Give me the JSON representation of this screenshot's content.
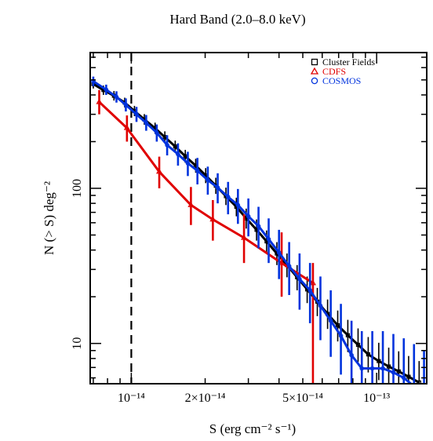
{
  "chart_data": {
    "type": "line",
    "title": "Hard Band (2.0–8.0 keV)",
    "xlabel": "S (erg cm⁻² s⁻¹)",
    "ylabel": "N (> S) deg⁻²",
    "x_scale": "log",
    "y_scale": "log",
    "xlim": [
      6.8e-15,
      1.6e-13
    ],
    "ylim": [
      5.5,
      750
    ],
    "x_ticks": [
      {
        "value": 1e-14,
        "label": "10⁻¹⁴"
      },
      {
        "value": 2e-14,
        "label": "2×10⁻¹⁴"
      },
      {
        "value": 5e-14,
        "label": "5×10⁻¹⁴"
      },
      {
        "value": 1e-13,
        "label": "10⁻¹³"
      }
    ],
    "y_ticks": [
      {
        "value": 10,
        "label": "10"
      },
      {
        "value": 100,
        "label": "100"
      }
    ],
    "vline": {
      "x": 1e-14,
      "style": "dashed"
    },
    "legend_position": "top-right",
    "series": [
      {
        "name": "Cluster Fields",
        "marker": "square",
        "color": "#000000",
        "points": [
          {
            "x": 7e-15,
            "y": 470,
            "lo": 440,
            "hi": 505
          },
          {
            "x": 7.7e-15,
            "y": 430,
            "lo": 400,
            "hi": 460
          },
          {
            "x": 8.5e-15,
            "y": 395,
            "lo": 368,
            "hi": 424
          },
          {
            "x": 9.4e-15,
            "y": 357,
            "lo": 332,
            "hi": 384
          },
          {
            "x": 1.03e-14,
            "y": 315,
            "lo": 292,
            "hi": 340
          },
          {
            "x": 1.13e-14,
            "y": 278,
            "lo": 257,
            "hi": 301
          },
          {
            "x": 1.25e-14,
            "y": 244,
            "lo": 225,
            "hi": 265
          },
          {
            "x": 1.37e-14,
            "y": 214,
            "lo": 196,
            "hi": 233
          },
          {
            "x": 1.51e-14,
            "y": 186,
            "lo": 170,
            "hi": 203
          },
          {
            "x": 1.66e-14,
            "y": 161,
            "lo": 146,
            "hi": 177
          },
          {
            "x": 1.83e-14,
            "y": 140,
            "lo": 126,
            "hi": 155
          },
          {
            "x": 2.01e-14,
            "y": 121,
            "lo": 108,
            "hi": 135
          },
          {
            "x": 2.21e-14,
            "y": 104,
            "lo": 92,
            "hi": 117
          },
          {
            "x": 2.43e-14,
            "y": 89,
            "lo": 78,
            "hi": 101
          },
          {
            "x": 2.68e-14,
            "y": 76,
            "lo": 66,
            "hi": 87
          },
          {
            "x": 2.94e-14,
            "y": 64,
            "lo": 55,
            "hi": 74
          },
          {
            "x": 3.24e-14,
            "y": 54,
            "lo": 46,
            "hi": 63
          },
          {
            "x": 3.56e-14,
            "y": 45.5,
            "lo": 38.5,
            "hi": 53.5
          },
          {
            "x": 3.92e-14,
            "y": 38,
            "lo": 32,
            "hi": 45
          },
          {
            "x": 4.31e-14,
            "y": 32,
            "lo": 26.7,
            "hi": 38
          },
          {
            "x": 4.74e-14,
            "y": 26.7,
            "lo": 22,
            "hi": 32
          },
          {
            "x": 5.21e-14,
            "y": 22.3,
            "lo": 18.2,
            "hi": 27
          },
          {
            "x": 5.73e-14,
            "y": 18.6,
            "lo": 15,
            "hi": 22.8
          },
          {
            "x": 6.31e-14,
            "y": 15.5,
            "lo": 12.4,
            "hi": 19.2
          },
          {
            "x": 6.94e-14,
            "y": 13.1,
            "lo": 10.3,
            "hi": 16.3
          },
          {
            "x": 7.63e-14,
            "y": 11.3,
            "lo": 8.8,
            "hi": 14.2
          },
          {
            "x": 8.4e-14,
            "y": 9.8,
            "lo": 7.6,
            "hi": 12.5
          },
          {
            "x": 9.24e-14,
            "y": 8.5,
            "lo": 6.5,
            "hi": 11
          },
          {
            "x": 1.02e-13,
            "y": 7.7,
            "lo": 5.8,
            "hi": 10.1
          },
          {
            "x": 1.12e-13,
            "y": 7.1,
            "lo": 5.3,
            "hi": 9.4
          },
          {
            "x": 1.23e-13,
            "y": 6.6,
            "lo": 4.9,
            "hi": 8.9
          },
          {
            "x": 1.35e-13,
            "y": 6.1,
            "lo": 4.5,
            "hi": 8.3
          },
          {
            "x": 1.49e-13,
            "y": 5.6,
            "lo": 4.1,
            "hi": 7.7
          }
        ]
      },
      {
        "name": "CDFS",
        "marker": "triangle",
        "color": "#e00000",
        "points": [
          {
            "x": 7.4e-15,
            "y": 360,
            "lo": 300,
            "hi": 430
          },
          {
            "x": 9.6e-15,
            "y": 245,
            "lo": 200,
            "hi": 295
          },
          {
            "x": 1.3e-14,
            "y": 128,
            "lo": 100,
            "hi": 160
          },
          {
            "x": 1.75e-14,
            "y": 78,
            "lo": 58,
            "hi": 102
          },
          {
            "x": 2.15e-14,
            "y": 63,
            "lo": 46,
            "hi": 84
          },
          {
            "x": 2.88e-14,
            "y": 48,
            "lo": 33,
            "hi": 68
          },
          {
            "x": 4.1e-14,
            "y": 33,
            "lo": 20,
            "hi": 52
          },
          {
            "x": 5.5e-14,
            "y": 24.5,
            "lo": 4,
            "hi": 33
          }
        ]
      },
      {
        "name": "COSMOS",
        "marker": "circle",
        "color": "#0033dd",
        "points": [
          {
            "x": 7e-15,
            "y": 490,
            "lo": 455,
            "hi": 525
          },
          {
            "x": 7.9e-15,
            "y": 432,
            "lo": 400,
            "hi": 466
          },
          {
            "x": 8.7e-15,
            "y": 388,
            "lo": 357,
            "hi": 422
          },
          {
            "x": 9.5e-15,
            "y": 345,
            "lo": 313,
            "hi": 380
          },
          {
            "x": 1.05e-14,
            "y": 300,
            "lo": 268,
            "hi": 335
          },
          {
            "x": 1.15e-14,
            "y": 264,
            "lo": 235,
            "hi": 297
          },
          {
            "x": 1.27e-14,
            "y": 228,
            "lo": 200,
            "hi": 258
          },
          {
            "x": 1.4e-14,
            "y": 190,
            "lo": 163,
            "hi": 220
          },
          {
            "x": 1.55e-14,
            "y": 166,
            "lo": 140,
            "hi": 195
          },
          {
            "x": 1.7e-14,
            "y": 145,
            "lo": 120,
            "hi": 172
          },
          {
            "x": 1.86e-14,
            "y": 130,
            "lo": 106,
            "hi": 157
          },
          {
            "x": 2.05e-14,
            "y": 113,
            "lo": 91,
            "hi": 138
          },
          {
            "x": 2.25e-14,
            "y": 101,
            "lo": 80,
            "hi": 125
          },
          {
            "x": 2.48e-14,
            "y": 88,
            "lo": 68,
            "hi": 110
          },
          {
            "x": 2.72e-14,
            "y": 78,
            "lo": 59,
            "hi": 99
          },
          {
            "x": 3e-14,
            "y": 66,
            "lo": 49,
            "hi": 86
          },
          {
            "x": 3.3e-14,
            "y": 57,
            "lo": 41,
            "hi": 76
          },
          {
            "x": 3.63e-14,
            "y": 47,
            "lo": 33,
            "hi": 64
          },
          {
            "x": 4e-14,
            "y": 38.5,
            "lo": 26,
            "hi": 54
          },
          {
            "x": 4.4e-14,
            "y": 31.5,
            "lo": 20.5,
            "hi": 45
          },
          {
            "x": 4.85e-14,
            "y": 26,
            "lo": 16.5,
            "hi": 38
          },
          {
            "x": 5.35e-14,
            "y": 22,
            "lo": 13.5,
            "hi": 33
          },
          {
            "x": 5.9e-14,
            "y": 17.5,
            "lo": 10.5,
            "hi": 27
          },
          {
            "x": 6.5e-14,
            "y": 14,
            "lo": 8.2,
            "hi": 22
          },
          {
            "x": 7.15e-14,
            "y": 11.2,
            "lo": 6.3,
            "hi": 18
          },
          {
            "x": 7.9e-14,
            "y": 8.4,
            "lo": 4.5,
            "hi": 14
          },
          {
            "x": 8.7e-14,
            "y": 6.9,
            "lo": 3.4,
            "hi": 12
          },
          {
            "x": 9.6e-14,
            "y": 6.9,
            "lo": 3.4,
            "hi": 12
          },
          {
            "x": 1.06e-13,
            "y": 6.9,
            "lo": 3.4,
            "hi": 12
          },
          {
            "x": 1.17e-13,
            "y": 6.5,
            "lo": 3.1,
            "hi": 11.5
          },
          {
            "x": 1.29e-13,
            "y": 6.0,
            "lo": 2.8,
            "hi": 10.8
          },
          {
            "x": 1.42e-13,
            "y": 5.3,
            "lo": 2.4,
            "hi": 9.9
          },
          {
            "x": 1.56e-13,
            "y": 4.6,
            "lo": 2.0,
            "hi": 9.0
          }
        ]
      }
    ]
  }
}
